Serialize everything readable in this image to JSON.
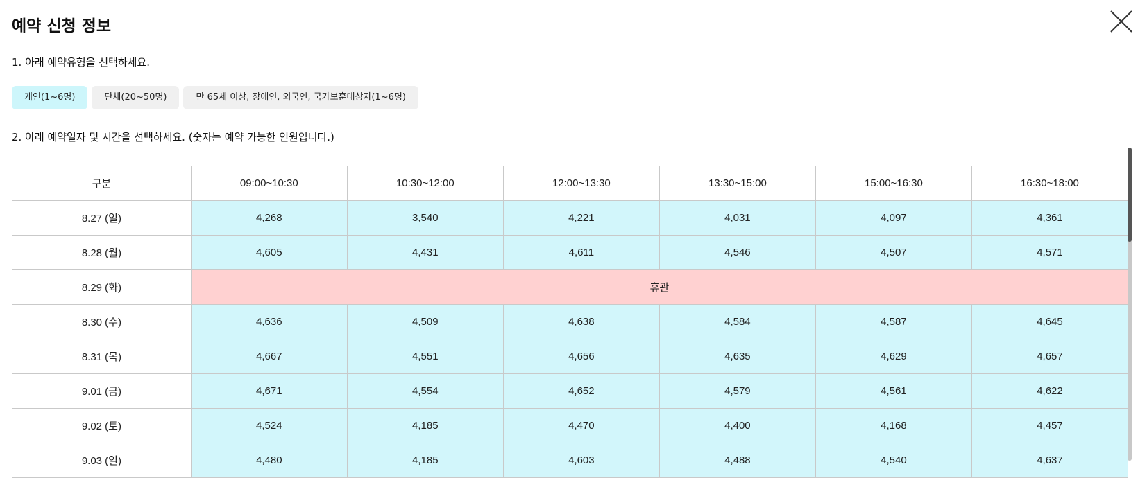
{
  "dialog": {
    "title": "예약 신청 정보",
    "step1": "1. 아래 예약유형을 선택하세요.",
    "step2": "2. 아래 예약일자 및 시간을 선택하세요. (숫자는 예약 가능한 인원입니다.)",
    "close_icon": "close-icon"
  },
  "types": [
    {
      "label": "개인(1~6명)",
      "selected": true
    },
    {
      "label": "단체(20~50명)",
      "selected": false
    },
    {
      "label": "만 65세 이상, 장애인, 외국인, 국가보훈대상자(1~6명)",
      "selected": false
    }
  ],
  "table": {
    "headers": [
      "구분",
      "09:00~10:30",
      "10:30~12:00",
      "12:00~13:30",
      "13:30~15:00",
      "15:00~16:30",
      "16:30~18:00"
    ],
    "rows": [
      {
        "date": "8.27 (일)",
        "values": [
          "4,268",
          "3,540",
          "4,221",
          "4,031",
          "4,097",
          "4,361"
        ]
      },
      {
        "date": "8.28 (월)",
        "values": [
          "4,605",
          "4,431",
          "4,611",
          "4,546",
          "4,507",
          "4,571"
        ]
      },
      {
        "date": "8.29 (화)",
        "closed": "휴관"
      },
      {
        "date": "8.30 (수)",
        "values": [
          "4,636",
          "4,509",
          "4,638",
          "4,584",
          "4,587",
          "4,645"
        ]
      },
      {
        "date": "8.31 (목)",
        "values": [
          "4,667",
          "4,551",
          "4,656",
          "4,635",
          "4,629",
          "4,657"
        ]
      },
      {
        "date": "9.01 (금)",
        "values": [
          "4,671",
          "4,554",
          "4,652",
          "4,579",
          "4,561",
          "4,622"
        ]
      },
      {
        "date": "9.02 (토)",
        "values": [
          "4,524",
          "4,185",
          "4,470",
          "4,400",
          "4,168",
          "4,457"
        ]
      },
      {
        "date": "9.03 (일)",
        "values": [
          "4,480",
          "4,185",
          "4,603",
          "4,488",
          "4,540",
          "4,637"
        ]
      }
    ]
  },
  "colors": {
    "selected_type_bg": "#cdf6fb",
    "slot_bg": "#d2f6fb",
    "closed_bg": "#ffd1d1"
  }
}
